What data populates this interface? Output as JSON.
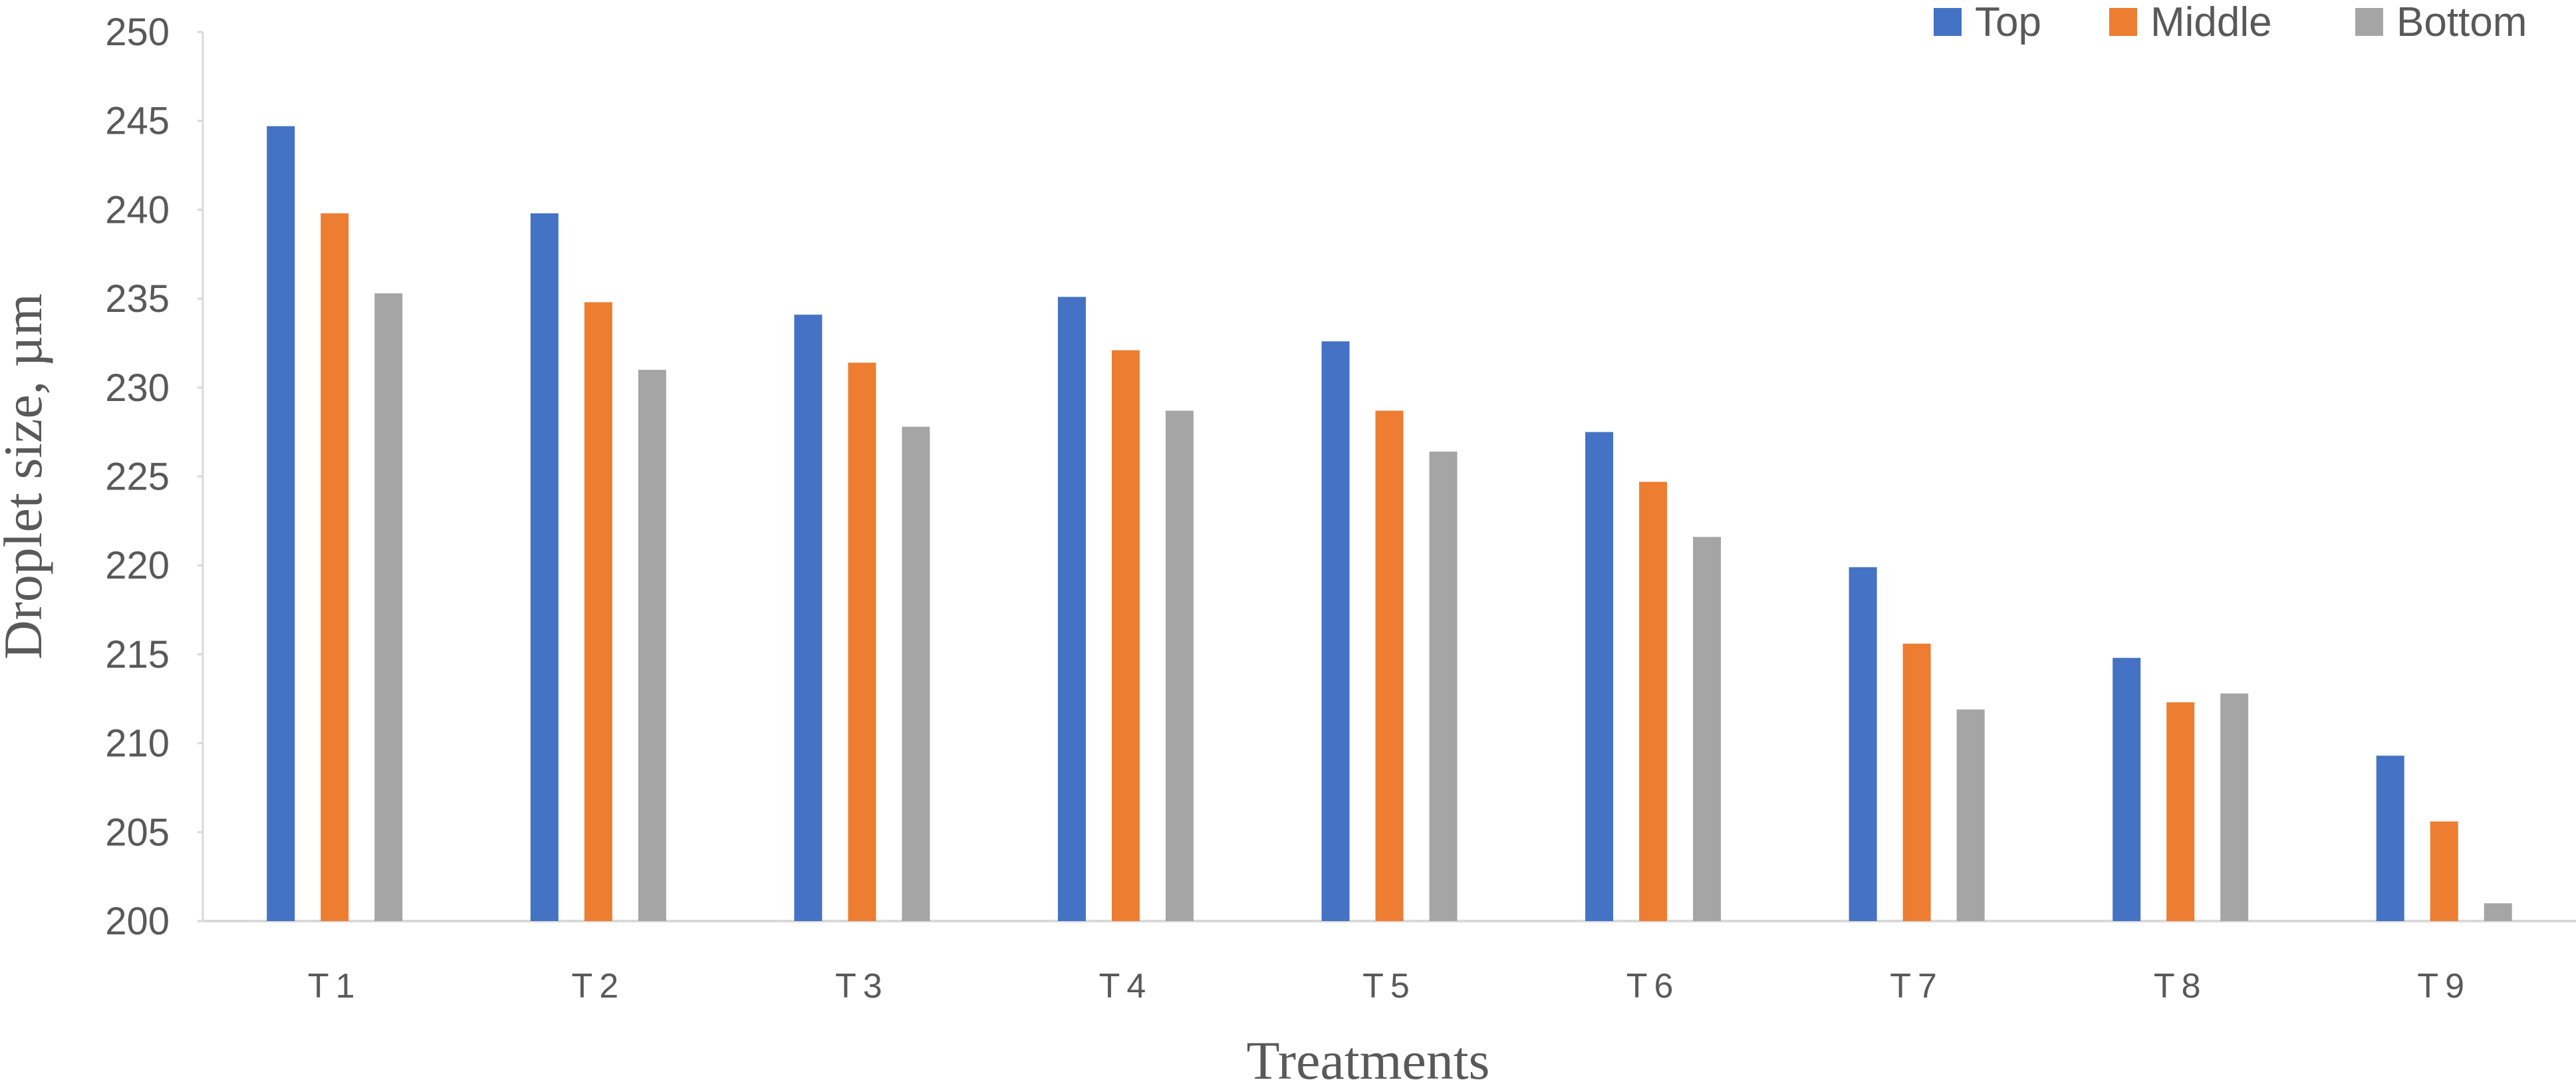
{
  "chart_data": {
    "type": "bar",
    "title": "",
    "xlabel": "Treatments",
    "ylabel": "Droplet size, µm",
    "ylim": [
      200,
      250
    ],
    "yticks": [
      200,
      205,
      210,
      215,
      220,
      225,
      230,
      235,
      240,
      245,
      250
    ],
    "categories": [
      "T1",
      "T2",
      "T3",
      "T4",
      "T5",
      "T6",
      "T7",
      "T8",
      "T9"
    ],
    "series": [
      {
        "name": "Top",
        "color": "#4472C4",
        "values": [
          244.7,
          239.8,
          234.1,
          235.1,
          232.6,
          227.5,
          219.9,
          214.8,
          209.3
        ]
      },
      {
        "name": "Middle",
        "color": "#ED7D31",
        "values": [
          239.8,
          234.8,
          231.4,
          232.1,
          228.7,
          224.7,
          215.6,
          212.3,
          205.6
        ]
      },
      {
        "name": "Bottom",
        "color": "#A5A5A5",
        "values": [
          235.3,
          231.0,
          227.8,
          228.7,
          226.4,
          221.6,
          211.9,
          212.8,
          201.0
        ]
      }
    ],
    "grid": false,
    "legend_position": "top-right"
  }
}
